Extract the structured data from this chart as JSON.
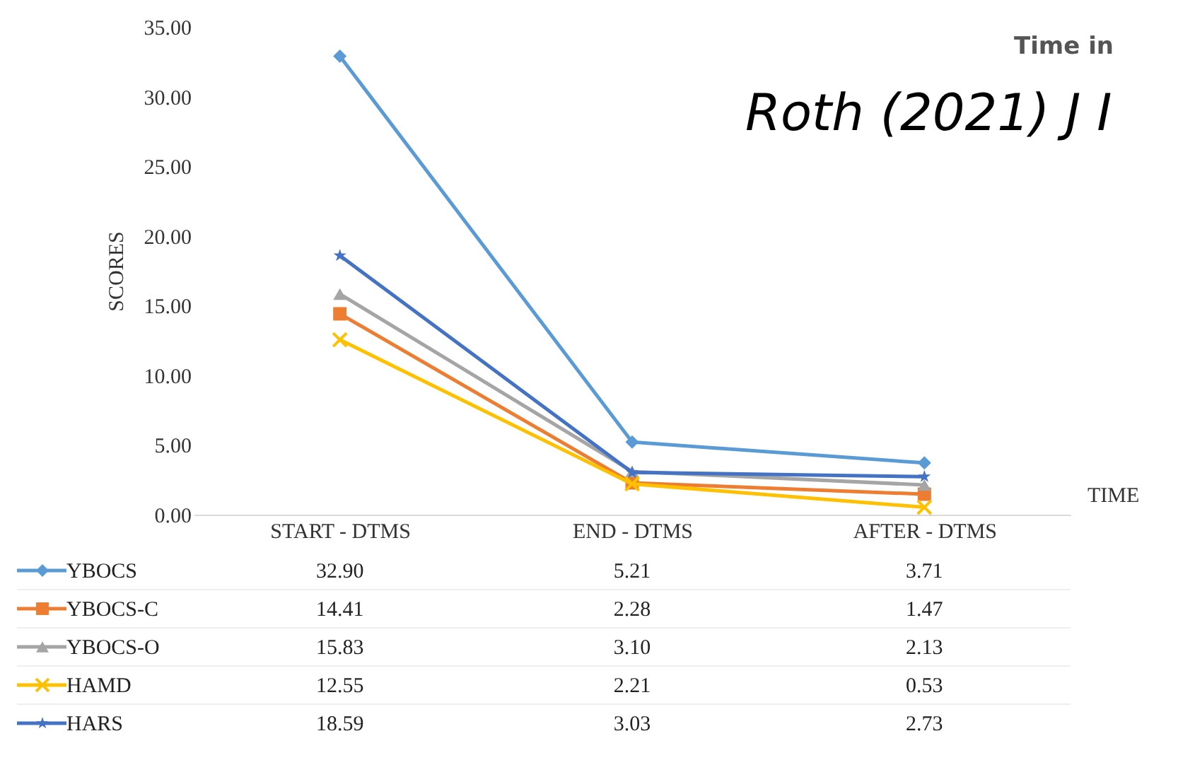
{
  "chart_data": {
    "type": "line",
    "xlabel": "TIME",
    "ylabel": "SCORES",
    "categories": [
      "START - DTMS",
      "END - DTMS",
      "AFTER - DTMS"
    ],
    "ylim": [
      0,
      35
    ],
    "yticks": [
      {
        "value": 0,
        "label": "0.00"
      },
      {
        "value": 5,
        "label": "5.00"
      },
      {
        "value": 10,
        "label": "10.00"
      },
      {
        "value": 15,
        "label": "15.00"
      },
      {
        "value": 20,
        "label": "20.00"
      },
      {
        "value": 25,
        "label": "25.00"
      },
      {
        "value": 30,
        "label": "30.00"
      },
      {
        "value": 35,
        "label": "35.00"
      }
    ],
    "grid": false,
    "legend": "bottom",
    "series": [
      {
        "name": "YBOCS",
        "color": "#5b9bd5",
        "marker": "diamond",
        "values": [
          32.9,
          5.21,
          3.71
        ],
        "value_labels": [
          "32.90",
          "5.21",
          "3.71"
        ]
      },
      {
        "name": "YBOCS-C",
        "color": "#ed7d31",
        "marker": "square",
        "values": [
          14.41,
          2.28,
          1.47
        ],
        "value_labels": [
          "14.41",
          "2.28",
          "1.47"
        ]
      },
      {
        "name": "YBOCS-O",
        "color": "#a5a5a5",
        "marker": "triangle",
        "values": [
          15.83,
          3.1,
          2.13
        ],
        "value_labels": [
          "15.83",
          "3.10",
          "2.13"
        ]
      },
      {
        "name": "HAMD",
        "color": "#ffc000",
        "marker": "cross",
        "values": [
          12.55,
          2.21,
          0.53
        ],
        "value_labels": [
          "12.55",
          "2.21",
          "0.53"
        ]
      },
      {
        "name": "HARS",
        "color": "#4472c4",
        "marker": "star",
        "values": [
          18.59,
          3.03,
          2.73
        ],
        "value_labels": [
          "18.59",
          "3.03",
          "2.73"
        ]
      }
    ],
    "annotations": [
      "Time in",
      "Roth (2021) J I"
    ]
  }
}
